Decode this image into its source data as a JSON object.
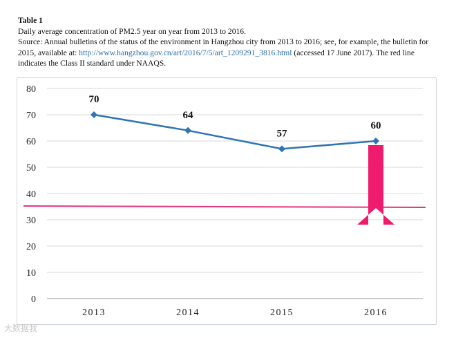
{
  "caption": {
    "table_label": "Table 1",
    "line1": "Daily average concentration of PM2.5 year on year from 2013 to 2016.",
    "source_prefix": "Source: Annual bulletins of the status of the environment in Hangzhou city from 2013 to 2016; see, for example, the bulletin for 2015, available at: ",
    "link_text": "http://www.hangzhou.gov.cn/art/2016/7/5/art_1209291_3816.html",
    "source_suffix": " (accessed 17 June 2017). The red line indicates the Class II standard under NAAQS."
  },
  "watermark": "大数据我",
  "chart_data": {
    "type": "line",
    "categories": [
      "2013",
      "2014",
      "2015",
      "2016"
    ],
    "series": [
      {
        "values": [
          70,
          64,
          57,
          60
        ],
        "color": "#2e75b6"
      }
    ],
    "data_labels": [
      "70",
      "64",
      "57",
      "60"
    ],
    "ylim": [
      0,
      80
    ],
    "yticks": [
      "0",
      "10",
      "20",
      "30",
      "40",
      "50",
      "60",
      "70",
      "80"
    ],
    "reference_line": {
      "value": 35,
      "color": "#e8327a"
    },
    "arrow_color": "#ef1b6e",
    "grid": true,
    "xlabel": "",
    "ylabel": ""
  }
}
